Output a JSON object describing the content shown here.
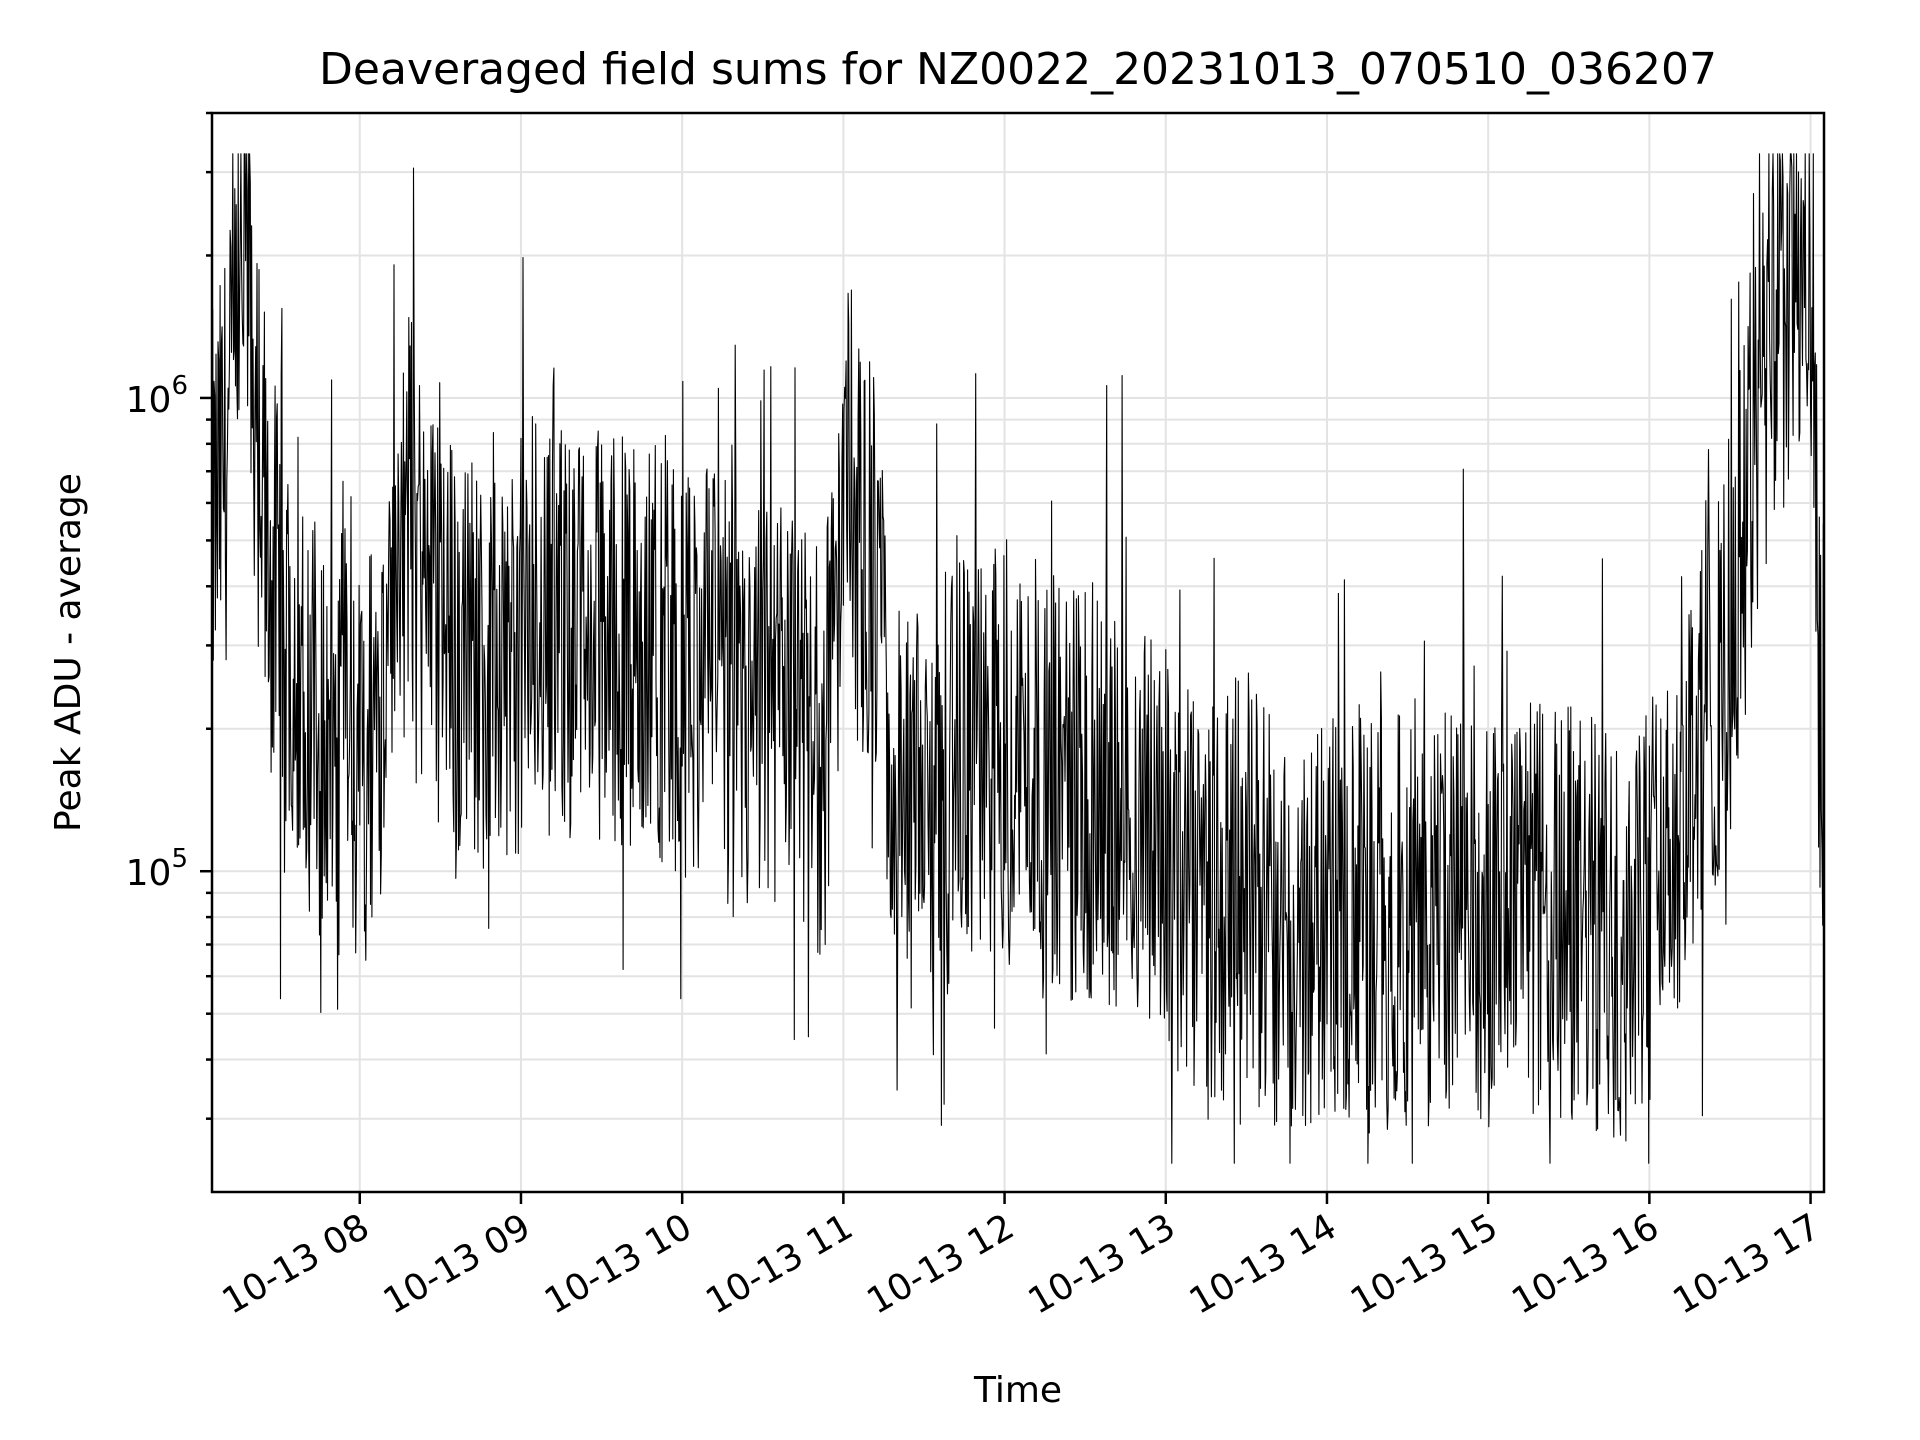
{
  "chart_data": {
    "type": "line",
    "title": "Deaveraged field sums for NZ0022_20231013_070510_036207",
    "xlabel": "Time",
    "ylabel": "Peak ADU - average",
    "yscale": "log",
    "ylim": [
      21000,
      4000000
    ],
    "xlim": [
      "2023-10-13 07:05",
      "2023-10-13 17:05"
    ],
    "grid": true,
    "x_ticks": [
      "10-13 08",
      "10-13 09",
      "10-13 10",
      "10-13 11",
      "10-13 12",
      "10-13 13",
      "10-13 14",
      "10-13 15",
      "10-13 16",
      "10-13 17"
    ],
    "y_ticks": [
      {
        "value": 100000,
        "base": "10",
        "exp": "5"
      },
      {
        "value": 1000000,
        "base": "10",
        "exp": "6"
      }
    ],
    "series": [
      {
        "color": "#000000",
        "x_hours_since_midnight": [
          7.1,
          7.2,
          7.3,
          7.4,
          7.5,
          7.6,
          7.7,
          7.8,
          7.9,
          8.0,
          8.1,
          8.2,
          8.3,
          8.4,
          8.5,
          8.6,
          8.7,
          8.8,
          8.9,
          9.0,
          9.1,
          9.2,
          9.3,
          9.4,
          9.5,
          9.6,
          9.7,
          9.8,
          9.9,
          10.0,
          10.1,
          10.2,
          10.3,
          10.4,
          10.5,
          10.6,
          10.7,
          10.8,
          10.9,
          11.0,
          11.1,
          11.2,
          11.3,
          11.4,
          11.5,
          11.6,
          11.7,
          11.8,
          11.9,
          12.0,
          12.1,
          12.2,
          12.3,
          12.4,
          12.5,
          12.6,
          12.7,
          12.8,
          12.9,
          13.0,
          13.1,
          13.2,
          13.3,
          13.4,
          13.5,
          13.6,
          13.7,
          13.8,
          13.9,
          14.0,
          14.1,
          14.2,
          14.3,
          14.4,
          14.5,
          14.6,
          14.7,
          14.8,
          14.9,
          15.0,
          15.1,
          15.2,
          15.3,
          15.4,
          15.5,
          15.6,
          15.7,
          15.8,
          15.9,
          16.0,
          16.1,
          16.2,
          16.3,
          16.4,
          16.5,
          16.6,
          16.7,
          16.8,
          16.9,
          17.0,
          17.08
        ],
        "x": [
          "2023-10-13 07:06",
          "2023-10-13 07:12",
          "2023-10-13 07:18",
          "2023-10-13 07:24",
          "2023-10-13 07:30",
          "2023-10-13 07:36",
          "2023-10-13 07:42",
          "2023-10-13 07:48",
          "2023-10-13 07:54",
          "2023-10-13 08:00",
          "2023-10-13 08:06",
          "2023-10-13 08:12",
          "2023-10-13 08:18",
          "2023-10-13 08:24",
          "2023-10-13 08:30",
          "2023-10-13 08:36",
          "2023-10-13 08:42",
          "2023-10-13 08:48",
          "2023-10-13 08:54",
          "2023-10-13 09:00",
          "2023-10-13 09:06",
          "2023-10-13 09:12",
          "2023-10-13 09:18",
          "2023-10-13 09:24",
          "2023-10-13 09:30",
          "2023-10-13 09:36",
          "2023-10-13 09:42",
          "2023-10-13 09:48",
          "2023-10-13 09:54",
          "2023-10-13 10:00",
          "2023-10-13 10:06",
          "2023-10-13 10:12",
          "2023-10-13 10:18",
          "2023-10-13 10:24",
          "2023-10-13 10:30",
          "2023-10-13 10:36",
          "2023-10-13 10:42",
          "2023-10-13 10:48",
          "2023-10-13 10:54",
          "2023-10-13 11:00",
          "2023-10-13 11:06",
          "2023-10-13 11:12",
          "2023-10-13 11:18",
          "2023-10-13 11:24",
          "2023-10-13 11:30",
          "2023-10-13 11:36",
          "2023-10-13 11:42",
          "2023-10-13 11:48",
          "2023-10-13 11:54",
          "2023-10-13 12:00",
          "2023-10-13 12:06",
          "2023-10-13 12:12",
          "2023-10-13 12:18",
          "2023-10-13 12:24",
          "2023-10-13 12:30",
          "2023-10-13 12:36",
          "2023-10-13 12:42",
          "2023-10-13 12:48",
          "2023-10-13 12:54",
          "2023-10-13 13:00",
          "2023-10-13 13:06",
          "2023-10-13 13:12",
          "2023-10-13 13:18",
          "2023-10-13 13:24",
          "2023-10-13 13:30",
          "2023-10-13 13:36",
          "2023-10-13 13:42",
          "2023-10-13 13:48",
          "2023-10-13 13:54",
          "2023-10-13 14:00",
          "2023-10-13 14:06",
          "2023-10-13 14:12",
          "2023-10-13 14:18",
          "2023-10-13 14:24",
          "2023-10-13 14:30",
          "2023-10-13 14:36",
          "2023-10-13 14:42",
          "2023-10-13 14:48",
          "2023-10-13 14:54",
          "2023-10-13 15:00",
          "2023-10-13 15:06",
          "2023-10-13 15:12",
          "2023-10-13 15:18",
          "2023-10-13 15:24",
          "2023-10-13 15:30",
          "2023-10-13 15:36",
          "2023-10-13 15:42",
          "2023-10-13 15:48",
          "2023-10-13 15:54",
          "2023-10-13 16:00",
          "2023-10-13 16:06",
          "2023-10-13 16:12",
          "2023-10-13 16:18",
          "2023-10-13 16:24",
          "2023-10-13 16:30",
          "2023-10-13 16:36",
          "2023-10-13 16:42",
          "2023-10-13 16:48",
          "2023-10-13 16:54",
          "2023-10-13 17:00",
          "2023-10-13 17:05"
        ],
        "values": [
          550000,
          900000,
          2200000,
          500000,
          350000,
          300000,
          220000,
          180000,
          200000,
          150000,
          220000,
          350000,
          600000,
          400000,
          350000,
          280000,
          300000,
          250000,
          280000,
          300000,
          350000,
          320000,
          330000,
          300000,
          320000,
          310000,
          300000,
          280000,
          300000,
          250000,
          280000,
          260000,
          230000,
          200000,
          220000,
          230000,
          210000,
          170000,
          200000,
          550000,
          500000,
          400000,
          150000,
          120000,
          130000,
          150000,
          160000,
          170000,
          180000,
          190000,
          180000,
          170000,
          160000,
          150000,
          140000,
          150000,
          140000,
          130000,
          120000,
          110000,
          90000,
          80000,
          85000,
          90000,
          100000,
          85000,
          80000,
          75000,
          78000,
          80000,
          82000,
          80000,
          78000,
          80000,
          85000,
          82000,
          78000,
          80000,
          85000,
          80000,
          78000,
          80000,
          82000,
          85000,
          80000,
          78000,
          75000,
          72000,
          80000,
          90000,
          110000,
          150000,
          200000,
          250000,
          300000,
          600000,
          1000000,
          1500000,
          1800000,
          1200000,
          120000
        ]
      }
    ]
  }
}
